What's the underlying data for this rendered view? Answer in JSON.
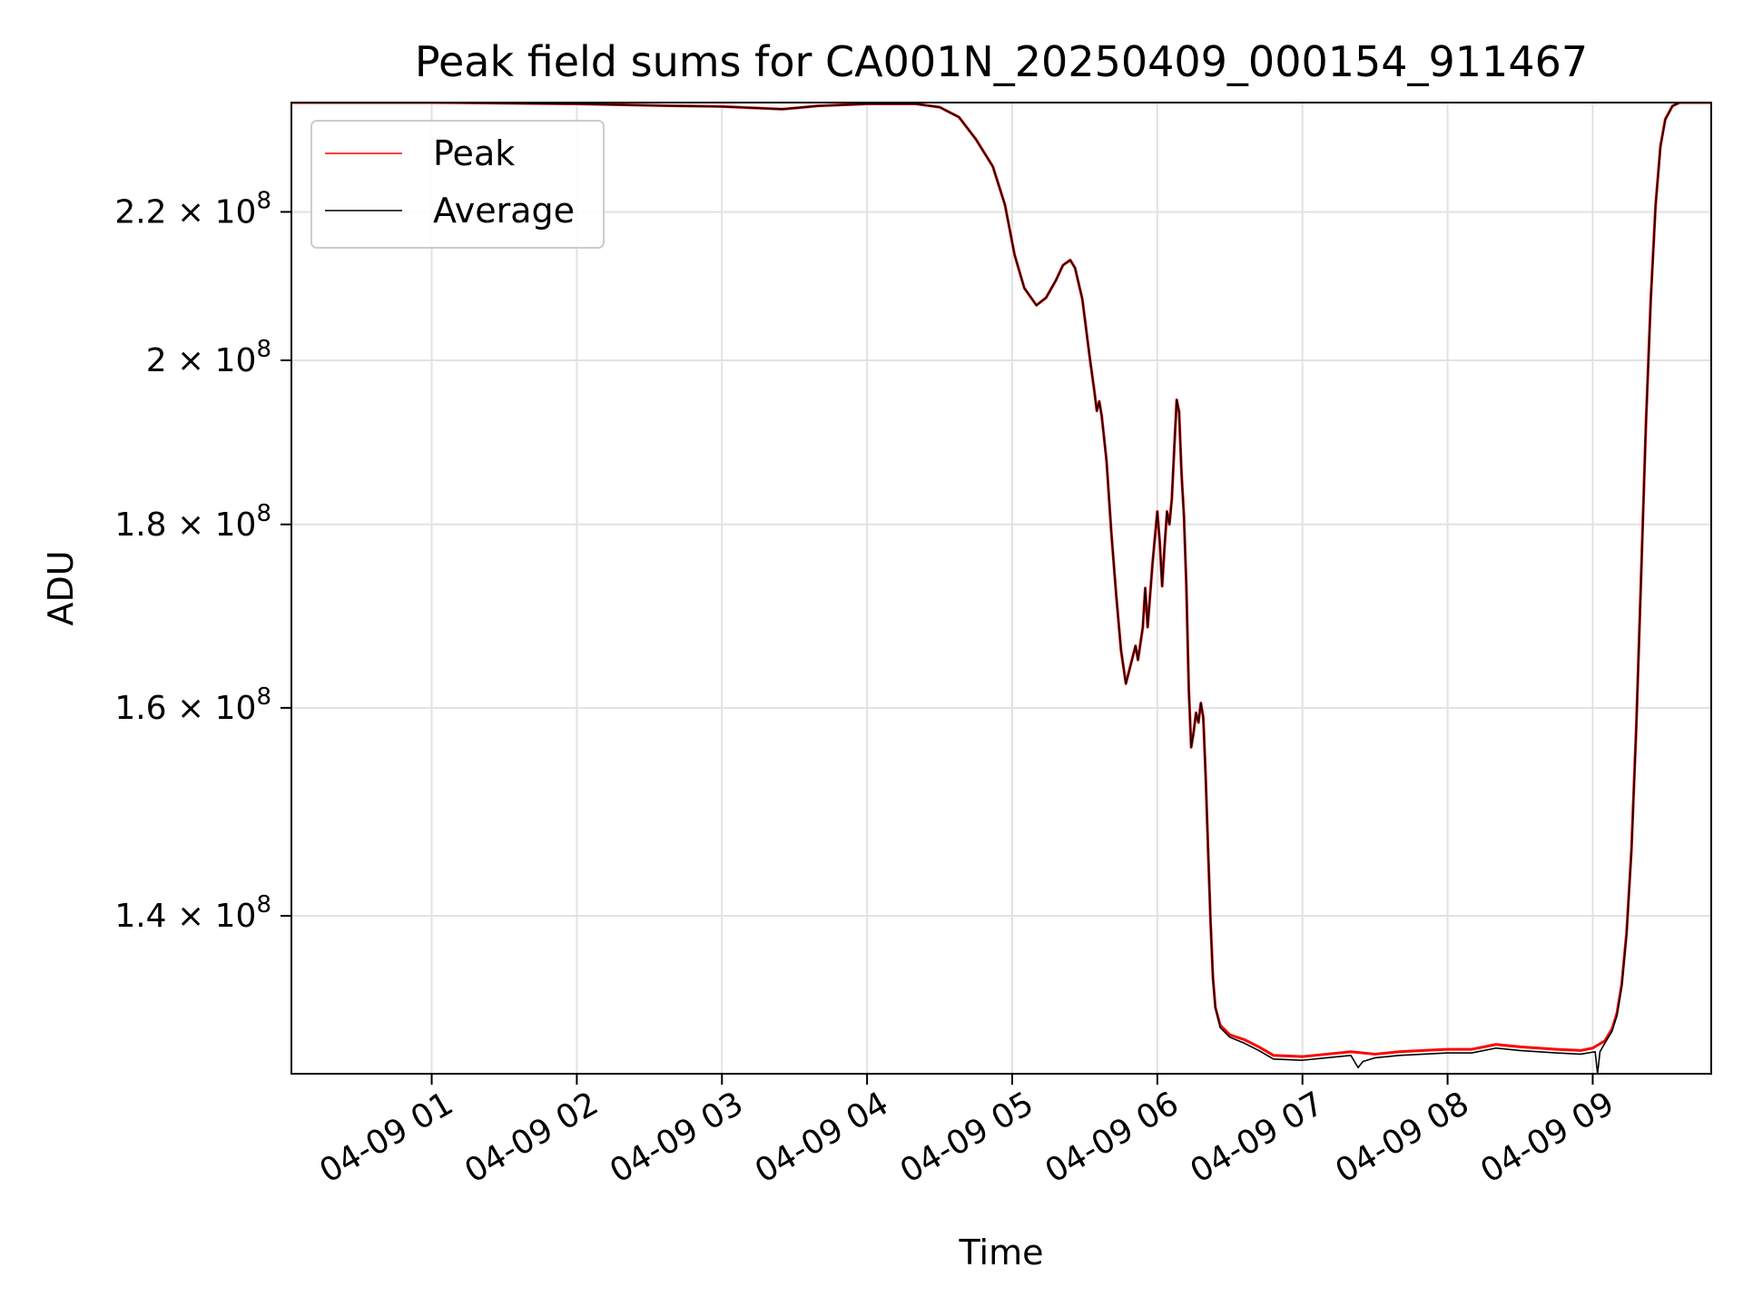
{
  "chart_data": {
    "type": "line",
    "title": "Peak field sums for CA001N_20250409_000154_911467",
    "xlabel": "Time",
    "ylabel": "ADU",
    "xlim": [
      "2025-04-09 00:02",
      "2025-04-09 09:49"
    ],
    "ylim": [
      126500000,
      236000000
    ],
    "yscale": "log",
    "grid": true,
    "legend_position": "upper-left",
    "x_ticks": [
      {
        "t": "2025-04-09 01:00",
        "label": "04-09 01"
      },
      {
        "t": "2025-04-09 02:00",
        "label": "04-09 02"
      },
      {
        "t": "2025-04-09 03:00",
        "label": "04-09 03"
      },
      {
        "t": "2025-04-09 04:00",
        "label": "04-09 04"
      },
      {
        "t": "2025-04-09 05:00",
        "label": "04-09 05"
      },
      {
        "t": "2025-04-09 06:00",
        "label": "04-09 06"
      },
      {
        "t": "2025-04-09 07:00",
        "label": "04-09 07"
      },
      {
        "t": "2025-04-09 08:00",
        "label": "04-09 08"
      },
      {
        "t": "2025-04-09 09:00",
        "label": "04-09 09"
      }
    ],
    "y_ticks": [
      {
        "value": 140000000,
        "mantissa": "1.4",
        "exponent": "8"
      },
      {
        "value": 160000000,
        "mantissa": "1.6",
        "exponent": "8"
      },
      {
        "value": 180000000,
        "mantissa": "1.8",
        "exponent": "8"
      },
      {
        "value": 200000000,
        "mantissa": "2",
        "exponent": "8"
      },
      {
        "value": 220000000,
        "mantissa": "2.2",
        "exponent": "8"
      }
    ],
    "series": [
      {
        "name": "Peak",
        "color": "#ff0000",
        "points": [
          [
            "2025-04-09 00:02",
            236000000
          ],
          [
            "2025-04-09 01:00",
            236000000
          ],
          [
            "2025-04-09 02:00",
            235800000
          ],
          [
            "2025-04-09 02:40",
            235500000
          ],
          [
            "2025-04-09 03:00",
            235400000
          ],
          [
            "2025-04-09 03:25",
            235000000
          ],
          [
            "2025-04-09 03:40",
            235500000
          ],
          [
            "2025-04-09 04:00",
            235800000
          ],
          [
            "2025-04-09 04:20",
            235800000
          ],
          [
            "2025-04-09 04:30",
            235300000
          ],
          [
            "2025-04-09 04:38",
            233800000
          ],
          [
            "2025-04-09 04:45",
            230500000
          ],
          [
            "2025-04-09 04:52",
            226500000
          ],
          [
            "2025-04-09 04:57",
            221000000
          ],
          [
            "2025-04-09 05:01",
            214000000
          ],
          [
            "2025-04-09 05:05",
            209500000
          ],
          [
            "2025-04-09 05:10",
            207200000
          ],
          [
            "2025-04-09 05:14",
            208200000
          ],
          [
            "2025-04-09 05:18",
            210500000
          ],
          [
            "2025-04-09 05:21",
            212600000
          ],
          [
            "2025-04-09 05:24",
            213300000
          ],
          [
            "2025-04-09 05:26",
            212200000
          ],
          [
            "2025-04-09 05:29",
            208000000
          ],
          [
            "2025-04-09 05:32",
            200500000
          ],
          [
            "2025-04-09 05:34",
            196000000
          ],
          [
            "2025-04-09 05:35",
            193600000
          ],
          [
            "2025-04-09 05:36",
            194800000
          ],
          [
            "2025-04-09 05:37",
            193000000
          ],
          [
            "2025-04-09 05:39",
            187500000
          ],
          [
            "2025-04-09 05:41",
            179000000
          ],
          [
            "2025-04-09 05:43",
            172000000
          ],
          [
            "2025-04-09 05:45",
            166000000
          ],
          [
            "2025-04-09 05:47",
            162500000
          ],
          [
            "2025-04-09 05:49",
            164500000
          ],
          [
            "2025-04-09 05:51",
            166500000
          ],
          [
            "2025-04-09 05:52",
            165000000
          ],
          [
            "2025-04-09 05:54",
            168500000
          ],
          [
            "2025-04-09 05:55",
            172800000
          ],
          [
            "2025-04-09 05:56",
            168500000
          ],
          [
            "2025-04-09 05:58",
            175500000
          ],
          [
            "2025-04-09 05:59",
            178500000
          ],
          [
            "2025-04-09 06:00",
            181500000
          ],
          [
            "2025-04-09 06:01",
            178000000
          ],
          [
            "2025-04-09 06:02",
            173000000
          ],
          [
            "2025-04-09 06:03",
            177500000
          ],
          [
            "2025-04-09 06:04",
            181500000
          ],
          [
            "2025-04-09 06:05",
            180000000
          ],
          [
            "2025-04-09 06:06",
            183000000
          ],
          [
            "2025-04-09 06:07",
            189000000
          ],
          [
            "2025-04-09 06:08",
            195000000
          ],
          [
            "2025-04-09 06:09",
            193500000
          ],
          [
            "2025-04-09 06:10",
            186000000
          ],
          [
            "2025-04-09 06:11",
            181000000
          ],
          [
            "2025-04-09 06:12",
            173000000
          ],
          [
            "2025-04-09 06:13",
            162000000
          ],
          [
            "2025-04-09 06:14",
            156000000
          ],
          [
            "2025-04-09 06:15",
            157500000
          ],
          [
            "2025-04-09 06:16",
            159500000
          ],
          [
            "2025-04-09 06:17",
            158500000
          ],
          [
            "2025-04-09 06:18",
            160500000
          ],
          [
            "2025-04-09 06:19",
            159000000
          ],
          [
            "2025-04-09 06:20",
            153000000
          ],
          [
            "2025-04-09 06:21",
            146000000
          ],
          [
            "2025-04-09 06:22",
            139500000
          ],
          [
            "2025-04-09 06:23",
            134500000
          ],
          [
            "2025-04-09 06:24",
            132000000
          ],
          [
            "2025-04-09 06:26",
            130500000
          ],
          [
            "2025-04-09 06:30",
            129700000
          ],
          [
            "2025-04-09 06:36",
            129300000
          ],
          [
            "2025-04-09 06:42",
            128700000
          ],
          [
            "2025-04-09 06:48",
            128000000
          ],
          [
            "2025-04-09 07:00",
            127900000
          ],
          [
            "2025-04-09 07:10",
            128100000
          ],
          [
            "2025-04-09 07:20",
            128300000
          ],
          [
            "2025-04-09 07:30",
            128100000
          ],
          [
            "2025-04-09 07:40",
            128300000
          ],
          [
            "2025-04-09 07:50",
            128400000
          ],
          [
            "2025-04-09 08:00",
            128500000
          ],
          [
            "2025-04-09 08:10",
            128500000
          ],
          [
            "2025-04-09 08:20",
            128900000
          ],
          [
            "2025-04-09 08:30",
            128700000
          ],
          [
            "2025-04-09 08:45",
            128500000
          ],
          [
            "2025-04-09 08:55",
            128400000
          ],
          [
            "2025-04-09 09:00",
            128600000
          ],
          [
            "2025-04-09 09:05",
            129200000
          ],
          [
            "2025-04-09 09:08",
            130200000
          ],
          [
            "2025-04-09 09:10",
            131500000
          ],
          [
            "2025-04-09 09:12",
            134000000
          ],
          [
            "2025-04-09 09:14",
            138500000
          ],
          [
            "2025-04-09 09:16",
            146000000
          ],
          [
            "2025-04-09 09:18",
            158000000
          ],
          [
            "2025-04-09 09:20",
            174000000
          ],
          [
            "2025-04-09 09:22",
            192000000
          ],
          [
            "2025-04-09 09:24",
            208000000
          ],
          [
            "2025-04-09 09:26",
            221000000
          ],
          [
            "2025-04-09 09:28",
            229500000
          ],
          [
            "2025-04-09 09:30",
            233500000
          ],
          [
            "2025-04-09 09:33",
            235500000
          ],
          [
            "2025-04-09 09:36",
            236000000
          ],
          [
            "2025-04-09 09:49",
            236000000
          ]
        ]
      },
      {
        "name": "Average",
        "color": "#000000",
        "points": [
          [
            "2025-04-09 00:02",
            236000000
          ],
          [
            "2025-04-09 01:00",
            236000000
          ],
          [
            "2025-04-09 02:00",
            235800000
          ],
          [
            "2025-04-09 02:40",
            235500000
          ],
          [
            "2025-04-09 03:00",
            235400000
          ],
          [
            "2025-04-09 03:25",
            235000000
          ],
          [
            "2025-04-09 03:40",
            235500000
          ],
          [
            "2025-04-09 04:00",
            235800000
          ],
          [
            "2025-04-09 04:20",
            235800000
          ],
          [
            "2025-04-09 04:30",
            235300000
          ],
          [
            "2025-04-09 04:38",
            233800000
          ],
          [
            "2025-04-09 04:45",
            230500000
          ],
          [
            "2025-04-09 04:52",
            226500000
          ],
          [
            "2025-04-09 04:57",
            221000000
          ],
          [
            "2025-04-09 05:01",
            214000000
          ],
          [
            "2025-04-09 05:05",
            209500000
          ],
          [
            "2025-04-09 05:10",
            207200000
          ],
          [
            "2025-04-09 05:14",
            208200000
          ],
          [
            "2025-04-09 05:18",
            210500000
          ],
          [
            "2025-04-09 05:21",
            212600000
          ],
          [
            "2025-04-09 05:24",
            213300000
          ],
          [
            "2025-04-09 05:26",
            212200000
          ],
          [
            "2025-04-09 05:29",
            208000000
          ],
          [
            "2025-04-09 05:32",
            200500000
          ],
          [
            "2025-04-09 05:34",
            196000000
          ],
          [
            "2025-04-09 05:35",
            193600000
          ],
          [
            "2025-04-09 05:36",
            194800000
          ],
          [
            "2025-04-09 05:37",
            193000000
          ],
          [
            "2025-04-09 05:39",
            187500000
          ],
          [
            "2025-04-09 05:41",
            179000000
          ],
          [
            "2025-04-09 05:43",
            172000000
          ],
          [
            "2025-04-09 05:45",
            166000000
          ],
          [
            "2025-04-09 05:47",
            162500000
          ],
          [
            "2025-04-09 05:49",
            164500000
          ],
          [
            "2025-04-09 05:51",
            166500000
          ],
          [
            "2025-04-09 05:52",
            165000000
          ],
          [
            "2025-04-09 05:54",
            168500000
          ],
          [
            "2025-04-09 05:55",
            172800000
          ],
          [
            "2025-04-09 05:56",
            168500000
          ],
          [
            "2025-04-09 05:58",
            175500000
          ],
          [
            "2025-04-09 05:59",
            178500000
          ],
          [
            "2025-04-09 06:00",
            181500000
          ],
          [
            "2025-04-09 06:01",
            178000000
          ],
          [
            "2025-04-09 06:02",
            173000000
          ],
          [
            "2025-04-09 06:03",
            177500000
          ],
          [
            "2025-04-09 06:04",
            181500000
          ],
          [
            "2025-04-09 06:05",
            180000000
          ],
          [
            "2025-04-09 06:06",
            183000000
          ],
          [
            "2025-04-09 06:07",
            189000000
          ],
          [
            "2025-04-09 06:08",
            195000000
          ],
          [
            "2025-04-09 06:09",
            193500000
          ],
          [
            "2025-04-09 06:10",
            186000000
          ],
          [
            "2025-04-09 06:11",
            181000000
          ],
          [
            "2025-04-09 06:12",
            173000000
          ],
          [
            "2025-04-09 06:13",
            162000000
          ],
          [
            "2025-04-09 06:14",
            156000000
          ],
          [
            "2025-04-09 06:15",
            157500000
          ],
          [
            "2025-04-09 06:16",
            159500000
          ],
          [
            "2025-04-09 06:17",
            158500000
          ],
          [
            "2025-04-09 06:18",
            160500000
          ],
          [
            "2025-04-09 06:19",
            159000000
          ],
          [
            "2025-04-09 06:20",
            153000000
          ],
          [
            "2025-04-09 06:21",
            146000000
          ],
          [
            "2025-04-09 06:22",
            139500000
          ],
          [
            "2025-04-09 06:23",
            134500000
          ],
          [
            "2025-04-09 06:24",
            132000000
          ],
          [
            "2025-04-09 06:26",
            130300000
          ],
          [
            "2025-04-09 06:30",
            129500000
          ],
          [
            "2025-04-09 06:36",
            129000000
          ],
          [
            "2025-04-09 06:42",
            128400000
          ],
          [
            "2025-04-09 06:48",
            127700000
          ],
          [
            "2025-04-09 07:00",
            127600000
          ],
          [
            "2025-04-09 07:10",
            127800000
          ],
          [
            "2025-04-09 07:20",
            128000000
          ],
          [
            "2025-04-09 07:23",
            127000000
          ],
          [
            "2025-04-09 07:25",
            127500000
          ],
          [
            "2025-04-09 07:30",
            127800000
          ],
          [
            "2025-04-09 07:40",
            128000000
          ],
          [
            "2025-04-09 07:50",
            128100000
          ],
          [
            "2025-04-09 08:00",
            128200000
          ],
          [
            "2025-04-09 08:10",
            128200000
          ],
          [
            "2025-04-09 08:20",
            128600000
          ],
          [
            "2025-04-09 08:30",
            128400000
          ],
          [
            "2025-04-09 08:45",
            128200000
          ],
          [
            "2025-04-09 08:55",
            128100000
          ],
          [
            "2025-04-09 09:01",
            128300000
          ],
          [
            "2025-04-09 09:02",
            126500000
          ],
          [
            "2025-04-09 09:03",
            128300000
          ],
          [
            "2025-04-09 09:05",
            129000000
          ],
          [
            "2025-04-09 09:08",
            130000000
          ],
          [
            "2025-04-09 09:10",
            131300000
          ],
          [
            "2025-04-09 09:12",
            133800000
          ],
          [
            "2025-04-09 09:14",
            138300000
          ],
          [
            "2025-04-09 09:16",
            145800000
          ],
          [
            "2025-04-09 09:18",
            157800000
          ],
          [
            "2025-04-09 09:20",
            173800000
          ],
          [
            "2025-04-09 09:22",
            191800000
          ],
          [
            "2025-04-09 09:24",
            207800000
          ],
          [
            "2025-04-09 09:26",
            220800000
          ],
          [
            "2025-04-09 09:28",
            229300000
          ],
          [
            "2025-04-09 09:30",
            233400000
          ],
          [
            "2025-04-09 09:33",
            235500000
          ],
          [
            "2025-04-09 09:36",
            236000000
          ],
          [
            "2025-04-09 09:49",
            236000000
          ]
        ]
      }
    ]
  }
}
